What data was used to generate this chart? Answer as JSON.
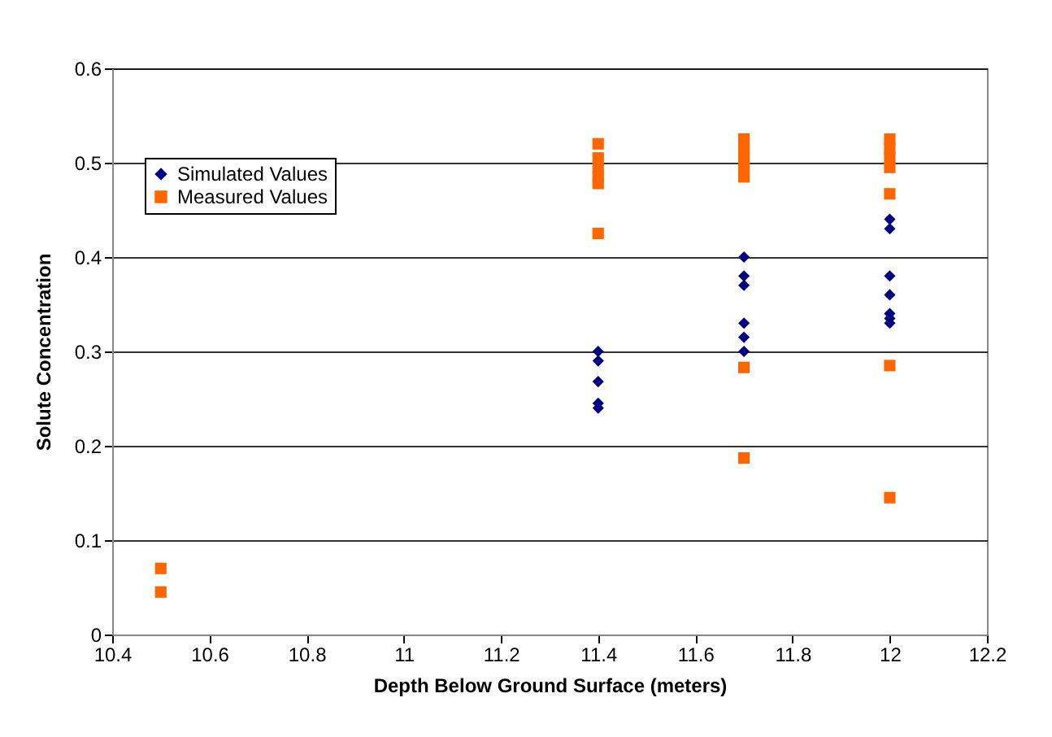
{
  "chart_data": {
    "type": "scatter",
    "xlabel": "Depth Below Ground Surface (meters)",
    "ylabel": "Solute Concentration",
    "xlim": [
      10.4,
      12.2
    ],
    "xticks": [
      10.4,
      10.6,
      10.8,
      11,
      11.2,
      11.4,
      11.6,
      11.8,
      12,
      12.2
    ],
    "ylim": [
      0,
      0.6
    ],
    "yticks": [
      0,
      0.1,
      0.2,
      0.3,
      0.4,
      0.5,
      0.6
    ],
    "grid": "y",
    "legend": "top left",
    "series": [
      {
        "name": "Simulated Values",
        "color": "#000080",
        "marker": "diamond",
        "x": [
          11.4,
          11.4,
          11.4,
          11.4,
          11.4,
          11.7,
          11.7,
          11.7,
          11.7,
          11.7,
          11.7,
          12,
          12,
          12,
          12,
          12,
          12,
          12
        ],
        "values": [
          0.3,
          0.29,
          0.268,
          0.245,
          0.24,
          0.4,
          0.38,
          0.37,
          0.33,
          0.315,
          0.3,
          0.44,
          0.43,
          0.38,
          0.36,
          0.34,
          0.335,
          0.33
        ]
      },
      {
        "name": "Measured Values",
        "color": "#ff6600",
        "marker": "square",
        "x": [
          10.5,
          10.5,
          11.4,
          11.4,
          11.4,
          11.4,
          11.4,
          11.4,
          11.7,
          11.7,
          11.7,
          11.7,
          11.7,
          11.7,
          11.7,
          12,
          12,
          12,
          12,
          12,
          12,
          12
        ],
        "values": [
          0.07,
          0.045,
          0.52,
          0.505,
          0.495,
          0.485,
          0.478,
          0.425,
          0.525,
          0.515,
          0.505,
          0.495,
          0.485,
          0.283,
          0.187,
          0.525,
          0.515,
          0.505,
          0.495,
          0.467,
          0.285,
          0.145
        ]
      }
    ]
  }
}
